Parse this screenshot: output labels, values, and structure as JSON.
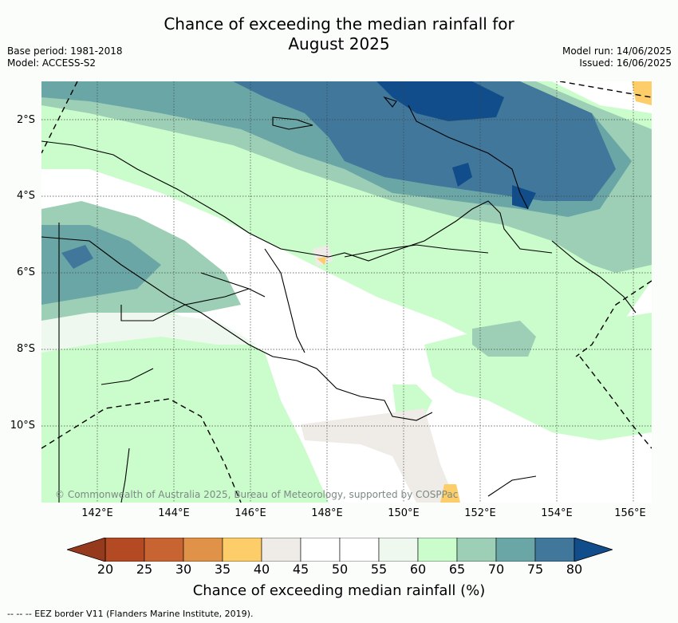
{
  "title_line1": "Chance of exceeding the median rainfall for",
  "title_line2": "August 2025",
  "base_period": "Base period: 1981-2018",
  "model": "Model: ACCESS-S2",
  "model_run": "Model run: 14/06/2025",
  "issued": "Issued: 16/06/2025",
  "lat_labels": [
    "2°S",
    "4°S",
    "6°S",
    "8°S",
    "10°S"
  ],
  "lon_labels": [
    "142°E",
    "144°E",
    "146°E",
    "148°E",
    "150°E",
    "152°E",
    "154°E",
    "156°E"
  ],
  "copyright": "© Commonwealth of Australia 2025, Bureau of Meteorology, supported by COSPPac",
  "colorbar": {
    "label": "Chance of exceeding median rainfall (%)",
    "ticks": [
      "20",
      "25",
      "30",
      "35",
      "40",
      "45",
      "50",
      "55",
      "60",
      "65",
      "70",
      "75",
      "80"
    ],
    "colors": [
      "#b34a24",
      "#c86432",
      "#df9248",
      "#fccd68",
      "#efebe7",
      "#ffffff",
      "#ffffff",
      "#eef8ee",
      "#cbfccb",
      "#9ccfb5",
      "#6ba6a6",
      "#40779b"
    ],
    "under_color": "#953a1d",
    "over_color": "#104d8a"
  },
  "eez_note": "--  --  -- EEZ border V11 (Flanders Marine Institute, 2019)."
}
